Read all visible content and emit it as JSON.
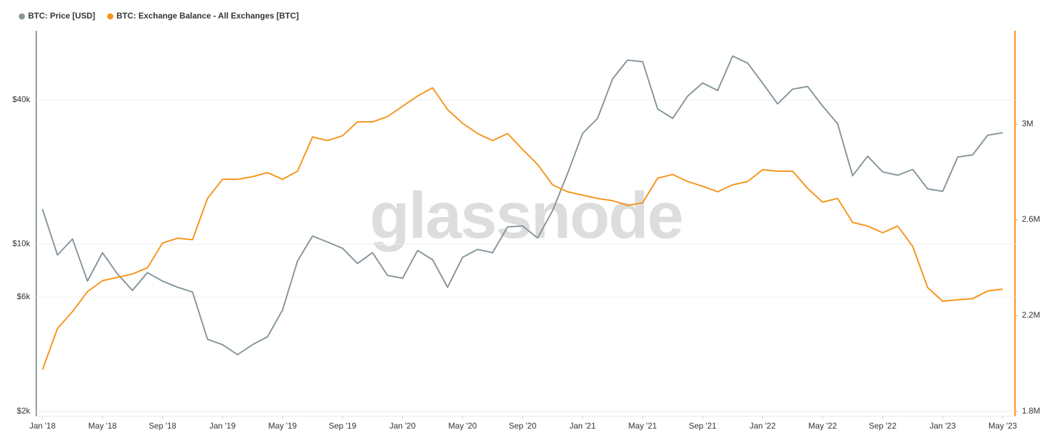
{
  "chart_data": {
    "type": "line",
    "watermark": "glassnode",
    "yscale": "log",
    "grid": true,
    "legend": "top-left",
    "x": [
      "2018-01",
      "2018-02",
      "2018-03",
      "2018-04",
      "2018-05",
      "2018-06",
      "2018-07",
      "2018-08",
      "2018-09",
      "2018-10",
      "2018-11",
      "2018-12",
      "2019-01",
      "2019-02",
      "2019-03",
      "2019-04",
      "2019-05",
      "2019-06",
      "2019-07",
      "2019-08",
      "2019-09",
      "2019-10",
      "2019-11",
      "2019-12",
      "2020-01",
      "2020-02",
      "2020-03",
      "2020-04",
      "2020-05",
      "2020-06",
      "2020-07",
      "2020-08",
      "2020-09",
      "2020-10",
      "2020-11",
      "2020-12",
      "2021-01",
      "2021-02",
      "2021-03",
      "2021-04",
      "2021-05",
      "2021-06",
      "2021-07",
      "2021-08",
      "2021-09",
      "2021-10",
      "2021-11",
      "2021-12",
      "2022-01",
      "2022-02",
      "2022-03",
      "2022-04",
      "2022-05",
      "2022-06",
      "2022-07",
      "2022-08",
      "2022-09",
      "2022-10",
      "2022-11",
      "2022-12",
      "2023-01",
      "2023-02",
      "2023-03",
      "2023-04",
      "2023-05"
    ],
    "xlim": [
      "2018-01",
      "2023-05"
    ],
    "xticks": [
      {
        "value": "2018-01",
        "label": "Jan '18"
      },
      {
        "value": "2018-05",
        "label": "May '18"
      },
      {
        "value": "2018-09",
        "label": "Sep '18"
      },
      {
        "value": "2019-01",
        "label": "Jan '19"
      },
      {
        "value": "2019-05",
        "label": "May '19"
      },
      {
        "value": "2019-09",
        "label": "Sep '19"
      },
      {
        "value": "2020-01",
        "label": "Jan '20"
      },
      {
        "value": "2020-05",
        "label": "May '20"
      },
      {
        "value": "2020-09",
        "label": "Sep '20"
      },
      {
        "value": "2021-01",
        "label": "Jan '21"
      },
      {
        "value": "2021-05",
        "label": "May '21"
      },
      {
        "value": "2021-09",
        "label": "Sep '21"
      },
      {
        "value": "2022-01",
        "label": "Jan '22"
      },
      {
        "value": "2022-05",
        "label": "May '22"
      },
      {
        "value": "2022-09",
        "label": "Sep '22"
      },
      {
        "value": "2023-01",
        "label": "Jan '23"
      },
      {
        "value": "2023-05",
        "label": "May '23"
      }
    ],
    "ylim": [
      1908,
      77800
    ],
    "yticks": [
      {
        "value": 2000,
        "label": "$2k"
      },
      {
        "value": 6000,
        "label": "$6k"
      },
      {
        "value": 10000,
        "label": "$10k"
      },
      {
        "value": 40000,
        "label": "$40k"
      }
    ],
    "y2lim": [
      1780000,
      3389000
    ],
    "y2ticks": [
      {
        "value": 1800000,
        "label": "1.8M"
      },
      {
        "value": 2200000,
        "label": "2.2M"
      },
      {
        "value": 2600000,
        "label": "2.6M"
      },
      {
        "value": 3000000,
        "label": "3M"
      }
    ],
    "series": [
      {
        "name": "BTC: Price [USD]",
        "color": "#84959a",
        "values": [
          14000,
          9000,
          10500,
          7000,
          9200,
          7500,
          6400,
          7600,
          7000,
          6600,
          6300,
          4000,
          3800,
          3450,
          3800,
          4100,
          5300,
          8500,
          10800,
          10200,
          9600,
          8300,
          9200,
          7400,
          7200,
          9400,
          8600,
          6600,
          8800,
          9500,
          9200,
          11800,
          11900,
          10600,
          13800,
          19700,
          29000,
          33500,
          49000,
          58700,
          57800,
          36700,
          33500,
          41500,
          47100,
          43800,
          61000,
          57000,
          47000,
          38500,
          44400,
          45500,
          37700,
          31800,
          19300,
          23300,
          20000,
          19400,
          20500,
          17000,
          16600,
          23100,
          23600,
          28500,
          29200
        ]
      },
      {
        "name": "BTC: Exchange Balance - All Exchanges [BTC]",
        "color": "#f7931a",
        "axis": "y2",
        "values": [
          1974000,
          2146000,
          2217000,
          2300000,
          2346000,
          2360000,
          2374000,
          2400000,
          2503000,
          2523000,
          2517000,
          2689000,
          2769000,
          2769000,
          2780000,
          2797000,
          2769000,
          2803000,
          2946000,
          2931000,
          2951000,
          3009000,
          3009000,
          3031000,
          3074000,
          3117000,
          3151000,
          3060000,
          3003000,
          2960000,
          2931000,
          2960000,
          2894000,
          2831000,
          2746000,
          2717000,
          2703000,
          2689000,
          2680000,
          2660000,
          2671000,
          2774000,
          2789000,
          2760000,
          2740000,
          2717000,
          2746000,
          2760000,
          2809000,
          2803000,
          2803000,
          2731000,
          2674000,
          2689000,
          2589000,
          2574000,
          2546000,
          2574000,
          2489000,
          2317000,
          2260000,
          2266000,
          2271000,
          2303000,
          2311000
        ]
      }
    ]
  }
}
